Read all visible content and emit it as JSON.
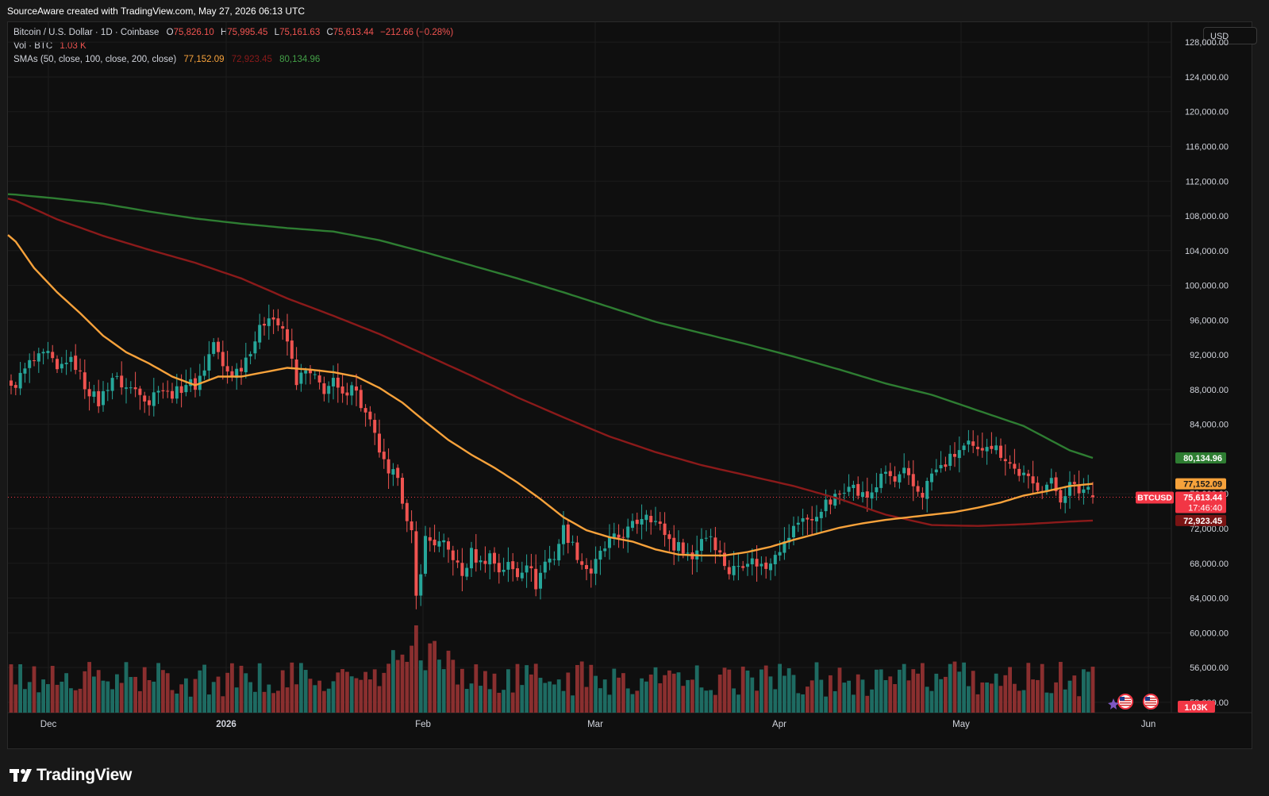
{
  "header": {
    "attribution": "SourceAware created with TradingView.com, May 27, 2026 06:13 UTC"
  },
  "legend": {
    "symbol": "Bitcoin / U.S. Dollar · 1D · Coinbase",
    "o_label": "O",
    "o_value": "75,826.10",
    "h_label": "H",
    "h_value": "75,995.45",
    "l_label": "L",
    "l_value": "75,161.63",
    "c_label": "C",
    "c_value": "75,613.44",
    "change": "−212.66 (−0.28%)",
    "vol_label": "Vol · BTC",
    "vol_value": "1.03 K",
    "sma_label": "SMAs (50, close, 100, close, 200, close)",
    "sma50": "77,152.09",
    "sma100": "72,923.45",
    "sma200": "80,134.96"
  },
  "currency_button": "USD",
  "branding": "TradingView",
  "colors": {
    "up": "#26a69a",
    "down": "#ef5350",
    "sma50": "#f7a23b",
    "sma100": "#8b1a1a",
    "sma200": "#2e7d32",
    "price_tag": "#f23645"
  },
  "chart_data": {
    "type": "candlestick",
    "symbol": "BTCUSD",
    "x_labels": [
      "Dec",
      "2026",
      "Feb",
      "Mar",
      "Apr",
      "May",
      "Jun"
    ],
    "y_ticks": [
      "128,000.00",
      "124,000.00",
      "120,000.00",
      "116,000.00",
      "112,000.00",
      "108,000.00",
      "104,000.00",
      "100,000.00",
      "96,000.00",
      "92,000.00",
      "88,000.00",
      "84,000.00",
      "76,000.00",
      "72,000.00",
      "68,000.00",
      "64,000.00",
      "60,000.00",
      "56,000.00",
      "52,000.00"
    ],
    "ylim": [
      50800,
      130300
    ],
    "close_path": [
      [
        0,
        88000
      ],
      [
        4,
        91000
      ],
      [
        8,
        92000
      ],
      [
        10,
        90000
      ],
      [
        12,
        91500
      ],
      [
        14,
        90800
      ],
      [
        16,
        88500
      ],
      [
        19,
        86500
      ],
      [
        22,
        89500
      ],
      [
        25,
        88200
      ],
      [
        28,
        88000
      ],
      [
        30,
        86500
      ],
      [
        32,
        88500
      ],
      [
        34,
        87500
      ],
      [
        36,
        87700
      ],
      [
        38,
        88800
      ],
      [
        40,
        88500
      ],
      [
        42,
        90500
      ],
      [
        44,
        93500
      ],
      [
        46,
        90500
      ],
      [
        48,
        89800
      ],
      [
        50,
        90700
      ],
      [
        53,
        93800
      ],
      [
        56,
        96800
      ],
      [
        58,
        95500
      ],
      [
        60,
        93500
      ],
      [
        62,
        89000
      ],
      [
        64,
        90000
      ],
      [
        66,
        89200
      ],
      [
        68,
        88000
      ],
      [
        70,
        88800
      ],
      [
        72,
        87000
      ],
      [
        74,
        89000
      ],
      [
        76,
        86200
      ],
      [
        78,
        84000
      ],
      [
        80,
        81000
      ],
      [
        82,
        77800
      ],
      [
        84,
        78500
      ],
      [
        86,
        72500
      ],
      [
        87,
        71200
      ],
      [
        88,
        64000
      ],
      [
        90,
        70800
      ],
      [
        92,
        70400
      ],
      [
        94,
        70000
      ],
      [
        96,
        68800
      ],
      [
        98,
        66500
      ],
      [
        100,
        69200
      ],
      [
        102,
        68000
      ],
      [
        104,
        69000
      ],
      [
        106,
        67200
      ],
      [
        108,
        67800
      ],
      [
        110,
        66700
      ],
      [
        112,
        68300
      ],
      [
        114,
        65500
      ],
      [
        116,
        68200
      ],
      [
        118,
        68800
      ],
      [
        120,
        72000
      ],
      [
        122,
        70000
      ],
      [
        124,
        68000
      ],
      [
        126,
        67000
      ],
      [
        128,
        69000
      ],
      [
        130,
        70500
      ],
      [
        132,
        71000
      ],
      [
        134,
        71800
      ],
      [
        136,
        72800
      ],
      [
        138,
        74000
      ],
      [
        140,
        72800
      ],
      [
        142,
        71500
      ],
      [
        144,
        70000
      ],
      [
        146,
        69800
      ],
      [
        148,
        68500
      ],
      [
        150,
        71000
      ],
      [
        152,
        71300
      ],
      [
        154,
        69000
      ],
      [
        156,
        67000
      ],
      [
        158,
        67800
      ],
      [
        160,
        68500
      ],
      [
        162,
        68000
      ],
      [
        164,
        67500
      ],
      [
        166,
        69500
      ],
      [
        168,
        70200
      ],
      [
        170,
        72000
      ],
      [
        172,
        73500
      ],
      [
        174,
        72600
      ],
      [
        176,
        74500
      ],
      [
        178,
        75000
      ],
      [
        180,
        76000
      ],
      [
        182,
        77500
      ],
      [
        184,
        76000
      ],
      [
        186,
        75600
      ],
      [
        188,
        77000
      ],
      [
        190,
        78500
      ],
      [
        192,
        77300
      ],
      [
        194,
        78400
      ],
      [
        196,
        76800
      ],
      [
        198,
        76000
      ],
      [
        200,
        78300
      ],
      [
        202,
        79000
      ],
      [
        204,
        80000
      ],
      [
        206,
        81000
      ],
      [
        208,
        81500
      ],
      [
        210,
        80700
      ],
      [
        212,
        82000
      ],
      [
        214,
        81200
      ],
      [
        216,
        80200
      ],
      [
        218,
        78800
      ],
      [
        220,
        78000
      ],
      [
        222,
        77000
      ],
      [
        224,
        76800
      ],
      [
        226,
        77300
      ],
      [
        228,
        75500
      ],
      [
        230,
        77000
      ],
      [
        232,
        76300
      ],
      [
        234,
        76800
      ],
      [
        235,
        75613
      ]
    ],
    "sma50": {
      "name": "SMA 50",
      "last_value": 77152.09,
      "points": [
        [
          0,
          105800
        ],
        [
          5,
          102000
        ],
        [
          10,
          99200
        ],
        [
          15,
          96800
        ],
        [
          20,
          94200
        ],
        [
          25,
          92300
        ],
        [
          30,
          91000
        ],
        [
          35,
          89500
        ],
        [
          40,
          88500
        ],
        [
          45,
          89500
        ],
        [
          50,
          89500
        ],
        [
          55,
          90000
        ],
        [
          60,
          90500
        ],
        [
          65,
          90300
        ],
        [
          70,
          90000
        ],
        [
          75,
          89500
        ],
        [
          80,
          88200
        ],
        [
          85,
          86500
        ],
        [
          90,
          84300
        ],
        [
          95,
          82200
        ],
        [
          100,
          80500
        ],
        [
          105,
          79000
        ],
        [
          110,
          77300
        ],
        [
          115,
          75400
        ],
        [
          120,
          73300
        ],
        [
          125,
          71800
        ],
        [
          130,
          71000
        ],
        [
          135,
          70500
        ],
        [
          140,
          69600
        ],
        [
          145,
          69000
        ],
        [
          150,
          68900
        ],
        [
          155,
          68900
        ],
        [
          160,
          69300
        ],
        [
          165,
          69900
        ],
        [
          170,
          70700
        ],
        [
          175,
          71400
        ],
        [
          180,
          72100
        ],
        [
          185,
          72600
        ],
        [
          190,
          73000
        ],
        [
          195,
          73300
        ],
        [
          200,
          73600
        ],
        [
          205,
          73900
        ],
        [
          210,
          74400
        ],
        [
          215,
          75000
        ],
        [
          220,
          75800
        ],
        [
          225,
          76300
        ],
        [
          230,
          76900
        ],
        [
          235,
          77152
        ]
      ]
    },
    "sma100": {
      "name": "SMA 100",
      "last_value": 72923.45,
      "points": [
        [
          0,
          110000
        ],
        [
          10,
          107600
        ],
        [
          20,
          105700
        ],
        [
          30,
          104100
        ],
        [
          40,
          102600
        ],
        [
          50,
          100800
        ],
        [
          60,
          98500
        ],
        [
          70,
          96500
        ],
        [
          80,
          94400
        ],
        [
          90,
          92000
        ],
        [
          100,
          89600
        ],
        [
          110,
          87100
        ],
        [
          120,
          84800
        ],
        [
          130,
          82600
        ],
        [
          140,
          80800
        ],
        [
          150,
          79300
        ],
        [
          160,
          78100
        ],
        [
          170,
          76900
        ],
        [
          180,
          75400
        ],
        [
          190,
          73600
        ],
        [
          200,
          72400
        ],
        [
          210,
          72300
        ],
        [
          220,
          72500
        ],
        [
          230,
          72800
        ],
        [
          235,
          72923
        ]
      ]
    },
    "sma200": {
      "name": "SMA 200",
      "last_value": 80134.96,
      "points": [
        [
          0,
          110500
        ],
        [
          10,
          110000
        ],
        [
          20,
          109400
        ],
        [
          30,
          108500
        ],
        [
          40,
          107700
        ],
        [
          50,
          107100
        ],
        [
          60,
          106600
        ],
        [
          70,
          106200
        ],
        [
          80,
          105200
        ],
        [
          90,
          103800
        ],
        [
          100,
          102300
        ],
        [
          110,
          100800
        ],
        [
          120,
          99200
        ],
        [
          130,
          97500
        ],
        [
          140,
          95800
        ],
        [
          150,
          94500
        ],
        [
          160,
          93200
        ],
        [
          170,
          91800
        ],
        [
          180,
          90300
        ],
        [
          190,
          88700
        ],
        [
          200,
          87400
        ],
        [
          210,
          85600
        ],
        [
          220,
          83800
        ],
        [
          230,
          81000
        ],
        [
          235,
          80135
        ]
      ]
    },
    "volume_label": "1.03K",
    "price_scale_tags": {
      "sma200": "80,134.96",
      "sma50": "77,152.09",
      "price": "75,613.44",
      "countdown": "17:46:40",
      "sma100": "72,923.45",
      "symbol": "BTCUSD"
    }
  }
}
